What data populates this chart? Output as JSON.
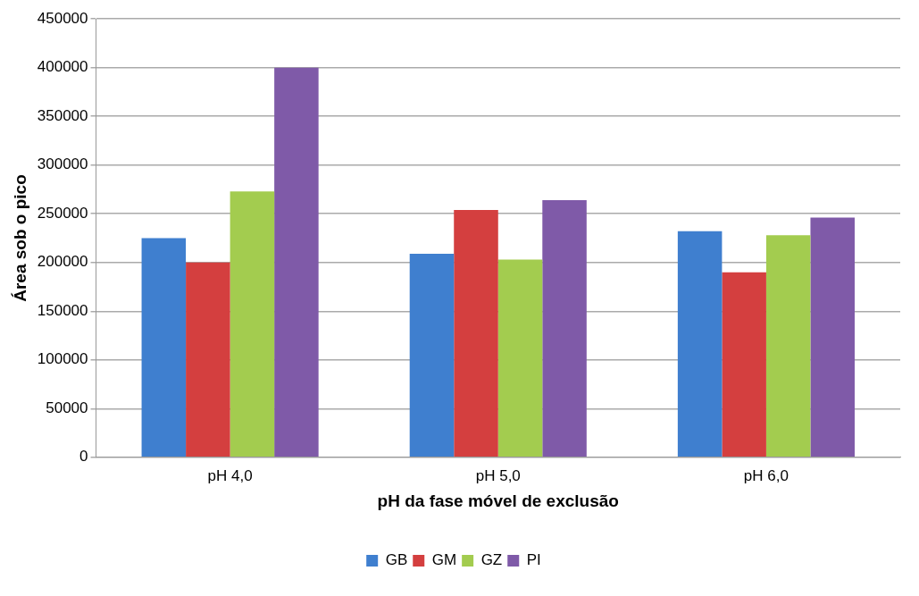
{
  "chart_data": {
    "type": "bar",
    "xlabel": "pH da fase móvel de exclusão",
    "ylabel": "Área sob o pico",
    "categories": [
      "pH 4,0",
      "pH 5,0",
      "pH 6,0"
    ],
    "series": [
      {
        "name": "GB",
        "color": "#3f7fcf",
        "values": [
          225000,
          209000,
          232000
        ]
      },
      {
        "name": "GM",
        "color": "#d43f3f",
        "values": [
          200000,
          254000,
          190000
        ]
      },
      {
        "name": "GZ",
        "color": "#a3cc4f",
        "values": [
          273000,
          203000,
          228000
        ]
      },
      {
        "name": "PI",
        "color": "#7f5aa8",
        "values": [
          400000,
          264000,
          246000
        ]
      }
    ],
    "ylim": [
      0,
      450000
    ],
    "yticks": [
      0,
      50000,
      100000,
      150000,
      200000,
      250000,
      300000,
      350000,
      400000,
      450000
    ],
    "grid": "y",
    "legend": "bottom"
  }
}
